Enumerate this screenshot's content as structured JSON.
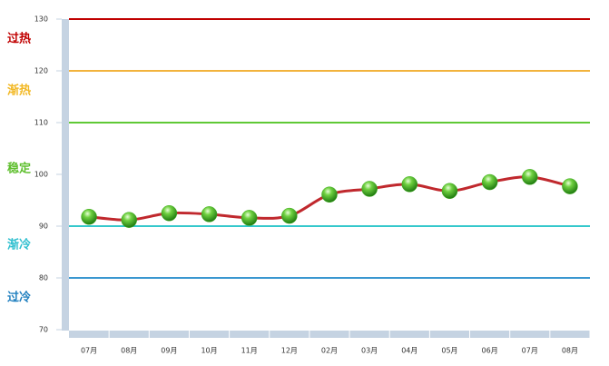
{
  "chart_data": {
    "type": "line",
    "categories": [
      "07月",
      "08月",
      "09月",
      "10月",
      "11月",
      "12月",
      "02月",
      "03月",
      "04月",
      "05月",
      "06月",
      "07月",
      "08月"
    ],
    "series": [
      {
        "color": "#c0282d",
        "marker_color": "#3fae1e",
        "values": [
          91.8,
          91.2,
          92.5,
          92.3,
          91.6,
          92.0,
          96.1,
          97.2,
          98.1,
          96.8,
          98.5,
          99.5,
          97.7
        ]
      }
    ],
    "ylim": [
      70,
      130
    ],
    "yticks": [
      70,
      80,
      90,
      100,
      110,
      120,
      130
    ],
    "reference_lines": [
      {
        "value": 130,
        "color": "#c00000"
      },
      {
        "value": 120,
        "color": "#f2b33d"
      },
      {
        "value": 110,
        "color": "#5fc936"
      },
      {
        "value": 90,
        "color": "#35c8cc"
      },
      {
        "value": 80,
        "color": "#3a97d0"
      }
    ],
    "zones": [
      {
        "label": "过热",
        "color": "#c00000"
      },
      {
        "label": "渐热",
        "color": "#f2b824"
      },
      {
        "label": "稳定",
        "color": "#5fbf2e"
      },
      {
        "label": "渐冷",
        "color": "#2fbfcf"
      },
      {
        "label": "过冷",
        "color": "#1f7fbf"
      }
    ]
  }
}
